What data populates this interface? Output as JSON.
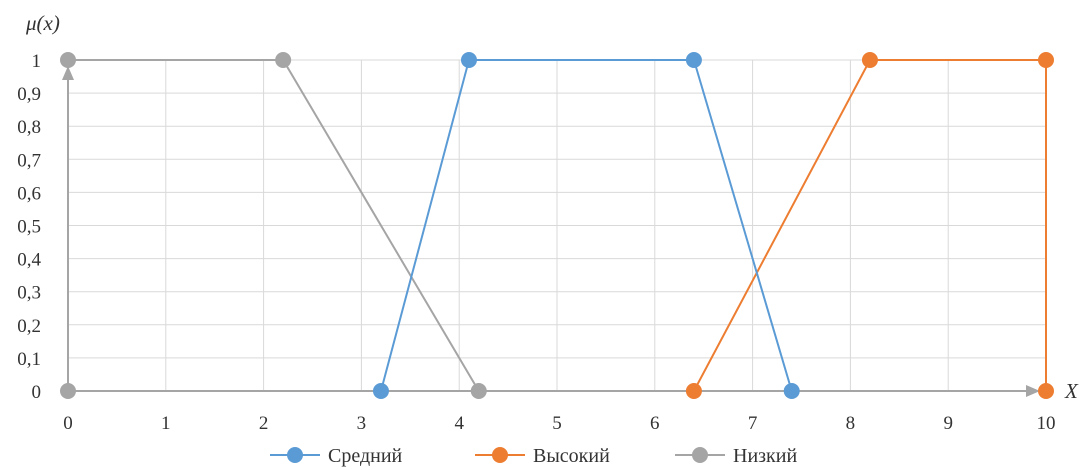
{
  "chart_data": {
    "type": "line",
    "ylabel": "μ(x)",
    "xlabel": "X",
    "xlim": [
      0,
      10
    ],
    "ylim": [
      0,
      1
    ],
    "x_ticks": [
      "0",
      "1",
      "2",
      "3",
      "4",
      "5",
      "6",
      "7",
      "8",
      "9",
      "10"
    ],
    "y_ticks": [
      "0",
      "0,1",
      "0,2",
      "0,3",
      "0,4",
      "0,5",
      "0,6",
      "0,7",
      "0,8",
      "0,9",
      "1"
    ],
    "grid": true,
    "legend_position": "bottom",
    "series": [
      {
        "name": "Средний",
        "color": "#5b9bd5",
        "marker": "circle",
        "points": [
          [
            3.2,
            0
          ],
          [
            4.1,
            1
          ],
          [
            6.4,
            1
          ],
          [
            7.4,
            0
          ]
        ]
      },
      {
        "name": "Высокий",
        "color": "#ed7d31",
        "marker": "circle",
        "points": [
          [
            6.4,
            0
          ],
          [
            8.2,
            1
          ],
          [
            10,
            1
          ],
          [
            10,
            0
          ]
        ]
      },
      {
        "name": "Низкий",
        "color": "#a5a5a5",
        "marker": "circle",
        "points": [
          [
            0,
            0
          ],
          [
            0,
            1
          ],
          [
            2.2,
            1
          ],
          [
            4.2,
            0
          ]
        ]
      }
    ],
    "axis_arrows": {
      "color": "#a5a5a5"
    }
  }
}
